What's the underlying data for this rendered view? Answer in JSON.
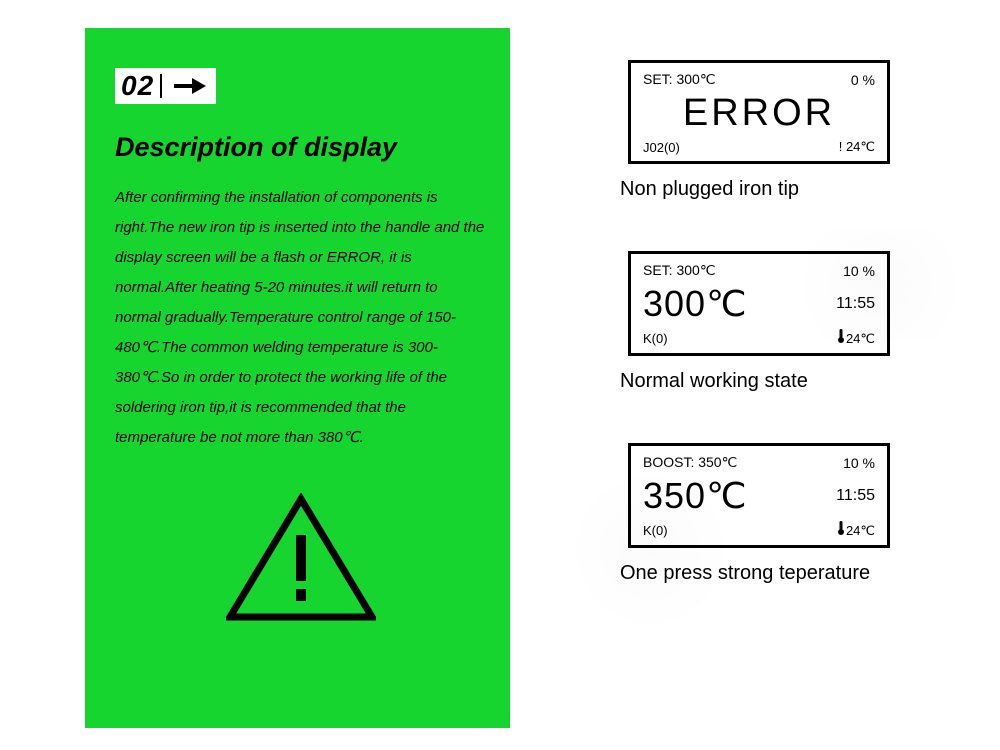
{
  "colors": {
    "panel_bg": "#16d52e",
    "text": "#000000",
    "white": "#ffffff",
    "border": "#000000"
  },
  "left_panel": {
    "section_number": "02",
    "title": "Description of display",
    "body": "After confirming the installation of components is right.The new iron tip is inserted into the handle and the display screen will be a flash or ERROR, it is normal.After heating 5-20 minutes.it will return to normal gradually.Temperature control range of 150-480℃.The common welding temperature is 300-380℃.So in order to protect the working life of the soldering iron tip,it is recommended that the temperature be not more than 380℃."
  },
  "displays": [
    {
      "top_left": "SET: 300℃",
      "top_right": "0 %",
      "main": "ERROR",
      "main_center": true,
      "main_right": "",
      "bottom_left": "J02(0)",
      "bottom_right_prefix": "!",
      "bottom_right": "24℃",
      "caption": "Non plugged iron tip"
    },
    {
      "top_left": "SET: 300℃",
      "top_right": "10 %",
      "main": "300℃",
      "main_center": false,
      "main_right": "11:55",
      "bottom_left": "K(0)",
      "bottom_right_prefix": "therm",
      "bottom_right": "24℃",
      "caption": "Normal working state"
    },
    {
      "top_left": "BOOST: 350℃",
      "top_right": "10 %",
      "main": "350℃",
      "main_center": false,
      "main_right": "11:55",
      "bottom_left": "K(0)",
      "bottom_right_prefix": "therm",
      "bottom_right": "24℃",
      "caption": "One press strong teperature"
    }
  ]
}
